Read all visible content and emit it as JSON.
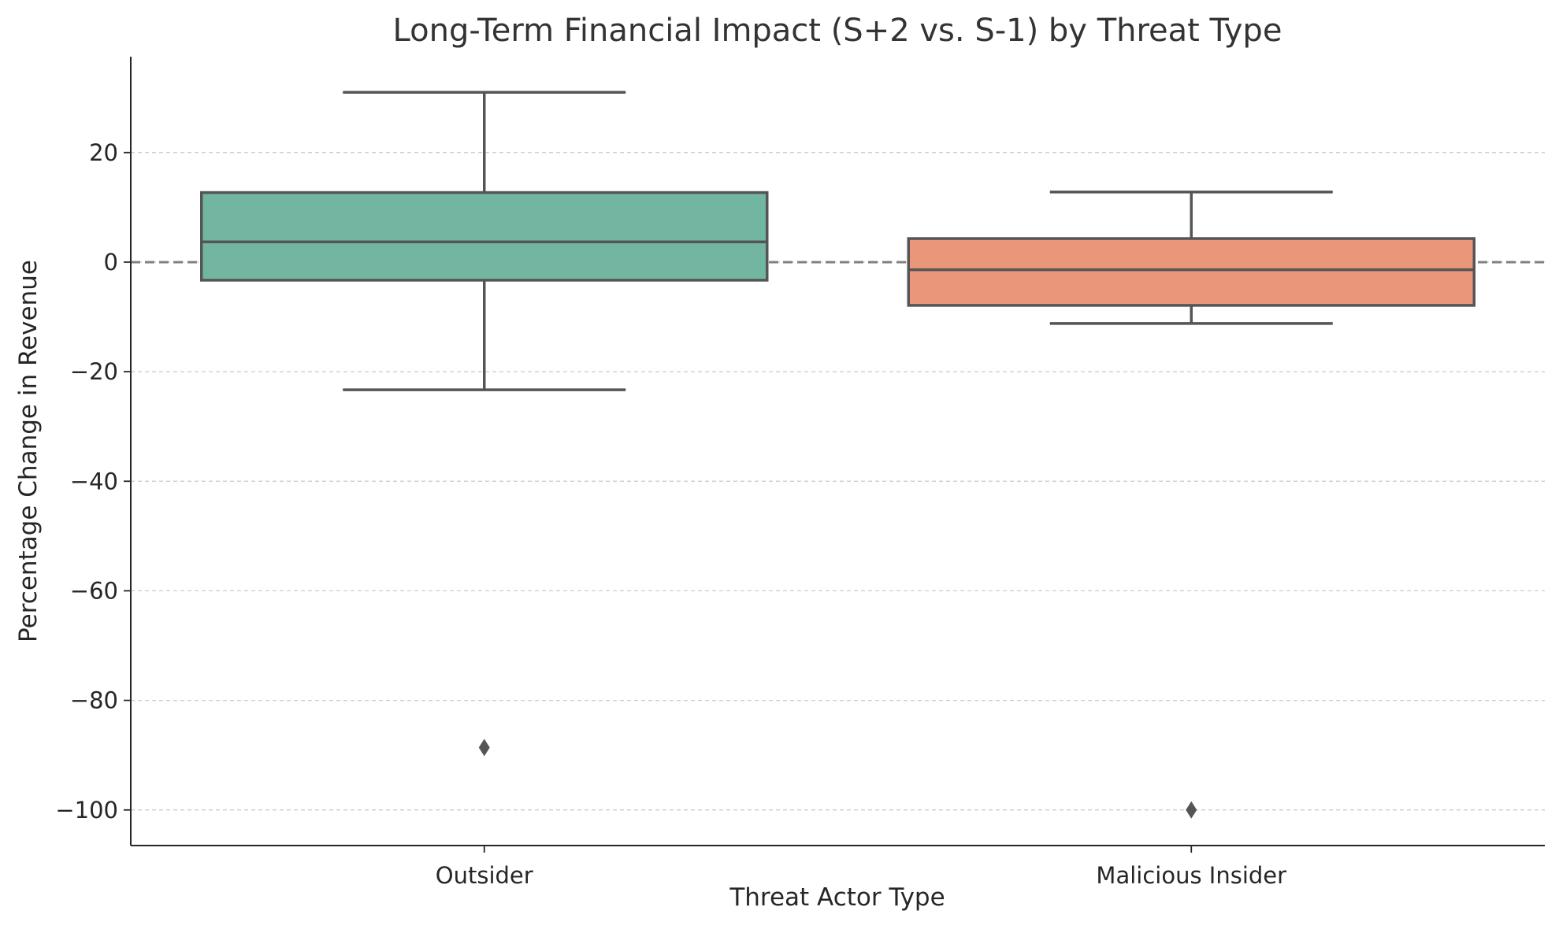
{
  "chart_data": {
    "type": "box",
    "title": "Long-Term Financial Impact (S+2 vs. S-1) by Threat Type",
    "xlabel": "Threat Actor Type",
    "ylabel": "Percentage Change in Revenue",
    "ylim": [
      -106.5,
      37.5
    ],
    "yticks": [
      20,
      0,
      -20,
      -40,
      -60,
      -80,
      -100
    ],
    "ytick_labels": [
      "20",
      "0",
      "−20",
      "−40",
      "−60",
      "−80",
      "−100"
    ],
    "grid": "y-dashed",
    "reference_line": 0,
    "categories": [
      "Outsider",
      "Malicious Insider"
    ],
    "boxes": [
      {
        "category": "Outsider",
        "whisker_low": -23.3,
        "q1": -3.3,
        "median": 3.7,
        "q3": 12.7,
        "whisker_high": 31.0,
        "outliers": [
          -88.6
        ],
        "color": "#72b6a1"
      },
      {
        "category": "Malicious Insider",
        "whisker_low": -11.2,
        "q1": -7.9,
        "median": -1.4,
        "q3": 4.3,
        "whisker_high": 12.8,
        "outliers": [
          -100.0
        ],
        "color": "#e9967a"
      }
    ]
  },
  "colors": {
    "edge": "#555555",
    "grid": "#c8c8c8",
    "reference": "#808080",
    "axis": "#262626"
  }
}
